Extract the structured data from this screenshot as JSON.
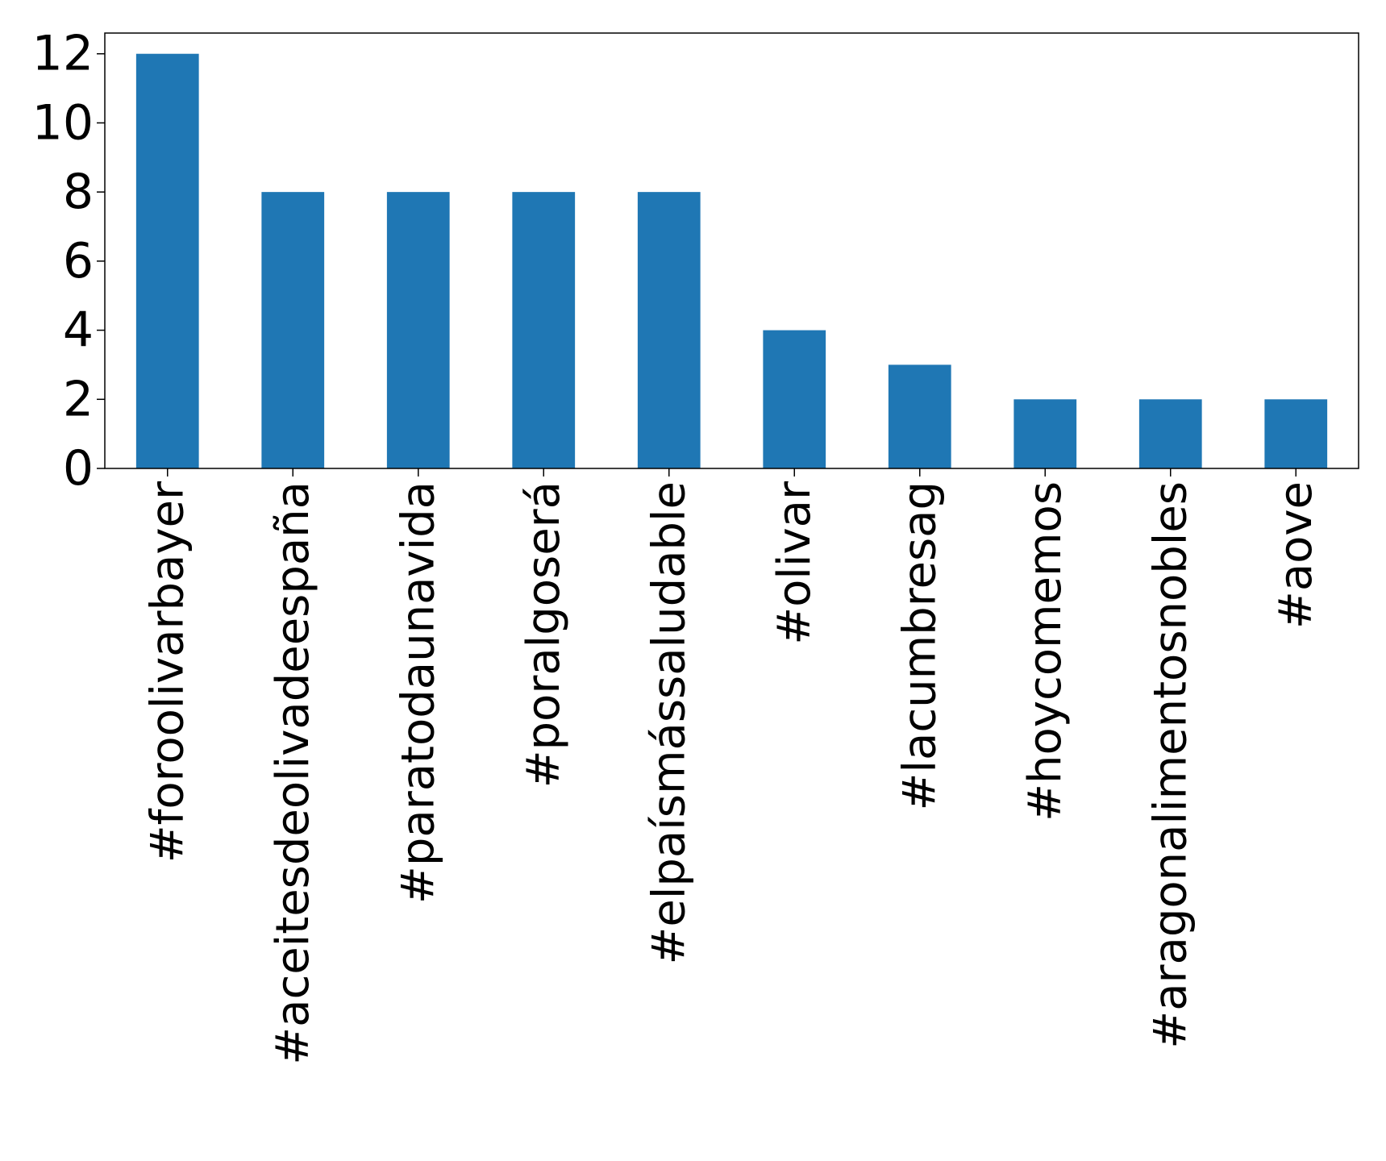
{
  "chart_data": {
    "type": "bar",
    "title": "",
    "xlabel": "",
    "ylabel": "",
    "categories": [
      "#foroolivarbayer",
      "#aceitesdeolivadeespaña",
      "#paratodaunavida",
      "#poralgoserá",
      "#elpaísmássaludable",
      "#olivar",
      "#lacumbresag",
      "#hoycomemos",
      "#aragonalimentosnobles",
      "#aove"
    ],
    "values": [
      12,
      8,
      8,
      8,
      8,
      4,
      3,
      2,
      2,
      2
    ],
    "ylim": [
      0,
      12.6
    ],
    "yticks": [
      0,
      2,
      4,
      6,
      8,
      10,
      12
    ],
    "grid": false,
    "legend": "none",
    "bar_color": "#1f77b4"
  }
}
